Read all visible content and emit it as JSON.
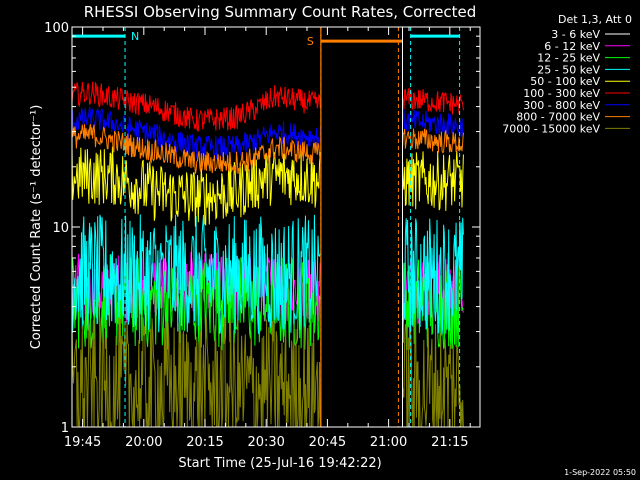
{
  "chart_data": {
    "type": "line",
    "title": "RHESSI Observing Summary Count Rates, Corrected",
    "xlabel": "Start Time (25-Jul-16 19:42:22)",
    "ylabel": "Corrected Count Rate (s⁻¹ detector⁻¹)",
    "y_scale": "log",
    "ylim": [
      1,
      100
    ],
    "xlim_minutes": [
      0,
      100
    ],
    "x_ticks": [
      {
        "minute": 2.6,
        "label": "19:45"
      },
      {
        "minute": 17.6,
        "label": "20:00"
      },
      {
        "minute": 32.6,
        "label": "20:15"
      },
      {
        "minute": 47.6,
        "label": "20:30"
      },
      {
        "minute": 62.6,
        "label": "20:45"
      },
      {
        "minute": 77.6,
        "label": "21:00"
      },
      {
        "minute": 92.6,
        "label": "21:15"
      }
    ],
    "y_ticks": [
      {
        "value": 1,
        "label": "1"
      },
      {
        "value": 10,
        "label": "10"
      },
      {
        "value": 100,
        "label": "100"
      }
    ],
    "legend_header": "Det 1,3, Att 0",
    "legend_position": "outside-right",
    "data_gaps_minutes": [
      [
        61,
        81
      ]
    ],
    "flags": [
      {
        "label": "N",
        "color": "#00ffff",
        "level": 90,
        "spans": [
          [
            0,
            13
          ],
          [
            83,
            95
          ]
        ],
        "bounds": [
          13,
          83,
          95
        ]
      },
      {
        "label": "S",
        "color": "#ff7f00",
        "level": 85,
        "spans": [
          [
            61,
            81
          ]
        ],
        "bounds": [
          61,
          80
        ]
      }
    ],
    "series": [
      {
        "name": "3 - 6 keV",
        "color": "#000000",
        "segments": [
          {
            "x": [
              0,
              61
            ],
            "y": [
              1.5,
              1.5
            ],
            "spread": 0.15
          },
          {
            "x": [
              81,
              96
            ],
            "y": [
              1.5,
              1.5
            ],
            "spread": 0.15
          }
        ]
      },
      {
        "name": "6 - 12 keV",
        "color": "#ff00ff",
        "segments": [
          {
            "x": [
              0,
              61
            ],
            "y": [
              5,
              5
            ],
            "spread": 0.06
          },
          {
            "x": [
              81,
              96
            ],
            "y": [
              5,
              5
            ],
            "spread": 0.06
          }
        ]
      },
      {
        "name": "12 - 25 keV",
        "color": "#00ff00",
        "segments": [
          {
            "x": [
              0,
              61
            ],
            "y": [
              4.2,
              4.2
            ],
            "spread": 0.08
          },
          {
            "x": [
              81,
              96
            ],
            "y": [
              4.2,
              4.2
            ],
            "spread": 0.08
          }
        ]
      },
      {
        "name": "25 - 50 keV",
        "color": "#00ffff",
        "segments": [
          {
            "x": [
              0,
              61
            ],
            "y": [
              5.8,
              5.8
            ],
            "spread": 0.1
          },
          {
            "x": [
              81,
              96
            ],
            "y": [
              5.8,
              5.8
            ],
            "spread": 0.1
          }
        ]
      },
      {
        "name": "50 - 100 keV",
        "color": "#ffff00",
        "segments": [
          {
            "x": [
              0,
              10,
              20,
              30,
              40,
              48,
              55,
              61
            ],
            "y": [
              18,
              18,
              15,
              14,
              15,
              18,
              18,
              17
            ],
            "spread": 0.05
          },
          {
            "x": [
              81,
              96
            ],
            "y": [
              17,
              17
            ],
            "spread": 0.05
          }
        ]
      },
      {
        "name": "100 - 300 keV",
        "color": "#ff0000",
        "segments": [
          {
            "x": [
              0,
              5,
              10,
              20,
              30,
              40,
              45,
              50,
              55,
              61
            ],
            "y": [
              46,
              47,
              44,
              40,
              34,
              35,
              39,
              45,
              43,
              41
            ],
            "spread": 0.02
          },
          {
            "x": [
              81,
              96
            ],
            "y": [
              44,
              41
            ],
            "spread": 0.02
          }
        ]
      },
      {
        "name": "300 - 800 keV",
        "color": "#0000ff",
        "segments": [
          {
            "x": [
              0,
              5,
              10,
              20,
              30,
              40,
              45,
              50,
              55,
              61
            ],
            "y": [
              34,
              35,
              33,
              29,
              25,
              25,
              27,
              30,
              29,
              28
            ],
            "spread": 0.02
          },
          {
            "x": [
              81,
              96
            ],
            "y": [
              34,
              32
            ],
            "spread": 0.02
          }
        ]
      },
      {
        "name": "800 - 7000 keV",
        "color": "#ff7f00",
        "segments": [
          {
            "x": [
              0,
              5,
              10,
              20,
              30,
              40,
              45,
              50,
              55,
              61
            ],
            "y": [
              28,
              29,
              27,
              24,
              21,
              21,
              22,
              25,
              24,
              23
            ],
            "spread": 0.02
          },
          {
            "x": [
              81,
              96
            ],
            "y": [
              28,
              26
            ],
            "spread": 0.02
          }
        ]
      },
      {
        "name": "7000 - 15000 keV",
        "color": "#808000",
        "segments": [
          {
            "x": [
              0,
              61
            ],
            "y": [
              1.55,
              1.55
            ],
            "spread": 0.12
          },
          {
            "x": [
              81,
              96
            ],
            "y": [
              1.55,
              1.55
            ],
            "spread": 0.12
          }
        ]
      }
    ],
    "footer_date": "1-Sep-2022 05:50"
  }
}
